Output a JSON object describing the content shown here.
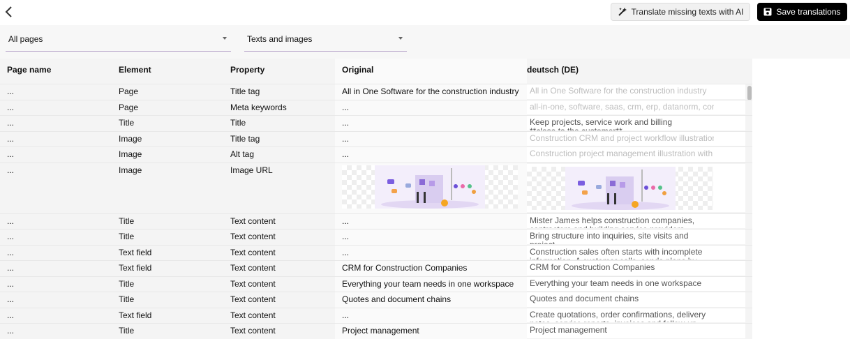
{
  "toolbar": {
    "translate_button": "Translate missing texts with AI",
    "save_button": "Save translations"
  },
  "filters": {
    "pages": "All pages",
    "content": "Texts and images"
  },
  "table": {
    "columns": [
      "Page name",
      "Element",
      "Property",
      "Original",
      "deutsch (DE)"
    ],
    "rows": [
      {
        "page": "...",
        "element": "Page",
        "property": "Title tag",
        "original": "All in One Software for the construction industry",
        "placeholder": "All in One Software for the construction industry"
      },
      {
        "page": "...",
        "element": "Page",
        "property": "Meta keywords",
        "original": "...",
        "placeholder": "all-in-one, software, saas, crm, erp, datanorm, const"
      },
      {
        "page": "...",
        "element": "Title",
        "property": "Title",
        "original": "...",
        "value": "Keep projects, service work and billing\n**close to the customer**"
      },
      {
        "page": "...",
        "element": "Image",
        "property": "Title tag",
        "original": "...",
        "placeholder": "Construction CRM and project workflow illustration"
      },
      {
        "page": "...",
        "element": "Image",
        "property": "Alt tag",
        "original": "...",
        "placeholder": "Construction project management illustration with c"
      },
      {
        "page": "...",
        "element": "Image",
        "property": "Image URL",
        "original": null,
        "value": null
      },
      {
        "page": "...",
        "element": "Title",
        "property": "Text content",
        "original": "...",
        "value": "Mister James helps construction companies,\ncontractors and building service providers manage"
      },
      {
        "page": "...",
        "element": "Title",
        "property": "Text content",
        "original": "...",
        "value": "Bring structure into inquiries, site visits and project\nrequests"
      },
      {
        "page": "...",
        "element": "Text field",
        "property": "Text content",
        "original": "...",
        "value": "Construction sales often starts with incomplete\ninformation. A customer calls, sends plans by"
      },
      {
        "page": "...",
        "element": "Text field",
        "property": "Text content",
        "original": "CRM for Construction Companies",
        "value": "CRM for Construction Companies"
      },
      {
        "page": "...",
        "element": "Title",
        "property": "Text content",
        "original": "Everything your team needs in one workspace",
        "value": "Everything your team needs in one workspace"
      },
      {
        "page": "...",
        "element": "Title",
        "property": "Text content",
        "original": "Quotes and document chains",
        "value": "Quotes and document chains"
      },
      {
        "page": "...",
        "element": "Text field",
        "property": "Text content",
        "original": "...",
        "value": "Create quotations, order confirmations, delivery\nnotes, service reports, invoices and follow-up"
      },
      {
        "page": "...",
        "element": "Title",
        "property": "Text content",
        "original": "Project management",
        "value": "Project management"
      }
    ]
  }
}
